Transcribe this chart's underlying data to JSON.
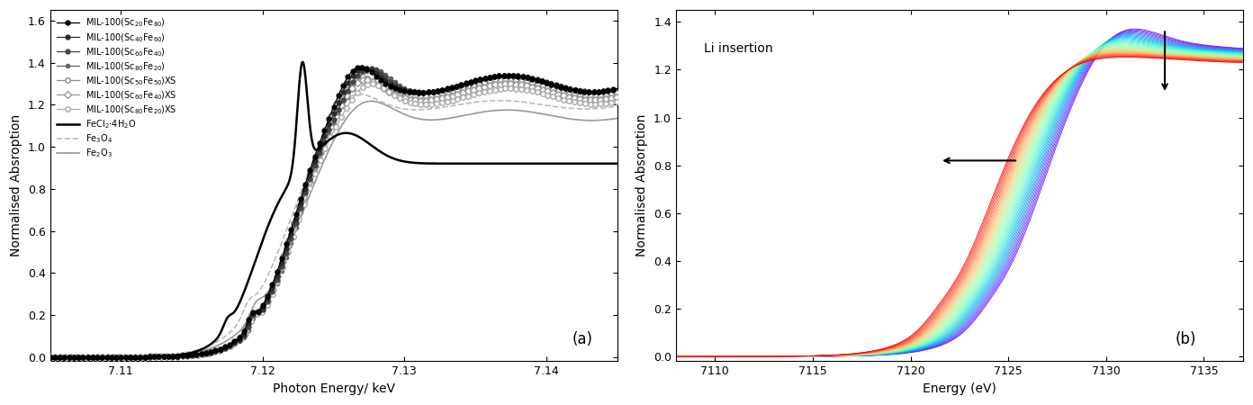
{
  "panel_a": {
    "xlabel": "Photon Energy/ keV",
    "ylabel": "Normalised Absroption",
    "xlim": [
      7.105,
      7.145
    ],
    "ylim": [
      -0.02,
      1.65
    ],
    "xticks": [
      7.11,
      7.12,
      7.13,
      7.14
    ],
    "yticks": [
      0.0,
      0.2,
      0.4,
      0.6,
      0.8,
      1.0,
      1.2,
      1.4,
      1.6
    ],
    "label": "(a)",
    "legend_entries": [
      "MIL-100(Sc$_{20}$Fe$_{80}$)",
      "MIL-100(Sc$_{40}$Fe$_{60}$)",
      "MIL-100(Sc$_{60}$Fe$_{40}$)",
      "MIL-100(Sc$_{80}$Fe$_{20}$)",
      "MIL-100(Sc$_{50}$Fe$_{50}$)XS",
      "MIL-100(Sc$_{60}$Fe$_{40}$)XS",
      "MIL-100(Sc$_{80}$Fe$_{20}$)XS",
      "FeCl$_2$$\\cdot$4H$_2$O",
      "Fe$_3$O$_4$",
      "Fe$_2$O$_3$"
    ]
  },
  "panel_b": {
    "xlabel": "Energy (eV)",
    "ylabel": "Normalised Absorption",
    "xlim": [
      7108,
      7137
    ],
    "ylim": [
      -0.02,
      1.45
    ],
    "xticks": [
      7110,
      7115,
      7120,
      7125,
      7130,
      7135
    ],
    "yticks": [
      0.0,
      0.2,
      0.4,
      0.6,
      0.8,
      1.0,
      1.2,
      1.4
    ],
    "label": "(b)",
    "annotation_text": "Li insertion",
    "n_curves": 35
  }
}
